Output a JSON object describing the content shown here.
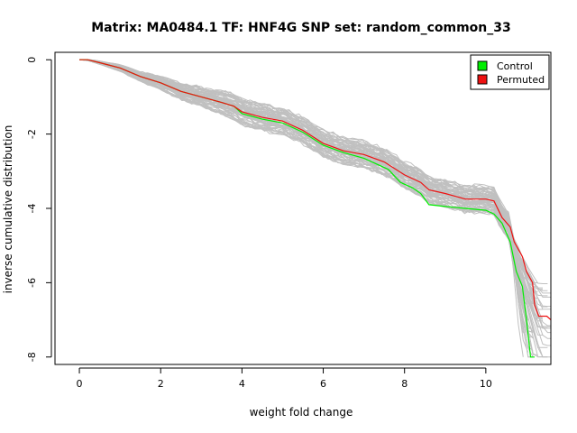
{
  "chart_data": {
    "type": "line",
    "title": "Matrix: MA0484.1 TF: HNF4G SNP set: random_common_33",
    "xlabel": "weight fold change",
    "ylabel": "inverse cumulative distribution",
    "xlim": [
      -0.6,
      11.6
    ],
    "ylim": [
      -8.2,
      0.2
    ],
    "xticks": [
      0,
      2,
      4,
      6,
      8,
      10
    ],
    "yticks": [
      0,
      -2,
      -4,
      -6,
      -8
    ],
    "grid": false,
    "legend": {
      "position": "top-right",
      "entries": [
        "Control",
        "Permuted"
      ]
    },
    "colors": {
      "control": "#00ee00",
      "permuted": "#ee1111",
      "background_series": "#c0c0c0"
    },
    "series": [
      {
        "name": "Control",
        "color": "#00ee00",
        "points": [
          [
            0.0,
            0.0
          ],
          [
            0.2,
            0.0
          ],
          [
            0.5,
            -0.08
          ],
          [
            1.0,
            -0.22
          ],
          [
            1.5,
            -0.45
          ],
          [
            2.0,
            -0.62
          ],
          [
            2.5,
            -0.85
          ],
          [
            3.0,
            -1.0
          ],
          [
            3.5,
            -1.15
          ],
          [
            3.8,
            -1.25
          ],
          [
            4.0,
            -1.45
          ],
          [
            4.5,
            -1.6
          ],
          [
            5.0,
            -1.7
          ],
          [
            5.5,
            -1.95
          ],
          [
            6.0,
            -2.3
          ],
          [
            6.5,
            -2.5
          ],
          [
            7.0,
            -2.65
          ],
          [
            7.3,
            -2.8
          ],
          [
            7.6,
            -2.95
          ],
          [
            7.9,
            -3.3
          ],
          [
            8.2,
            -3.45
          ],
          [
            8.4,
            -3.6
          ],
          [
            8.6,
            -3.9
          ],
          [
            9.0,
            -3.95
          ],
          [
            9.5,
            -4.0
          ],
          [
            10.0,
            -4.05
          ],
          [
            10.2,
            -4.15
          ],
          [
            10.4,
            -4.4
          ],
          [
            10.6,
            -4.9
          ],
          [
            10.75,
            -5.7
          ],
          [
            10.9,
            -6.1
          ],
          [
            11.0,
            -7.0
          ],
          [
            11.1,
            -8.0
          ],
          [
            11.2,
            -8.0
          ]
        ]
      },
      {
        "name": "Permuted",
        "color": "#ee1111",
        "points": [
          [
            0.0,
            0.0
          ],
          [
            0.2,
            0.0
          ],
          [
            0.5,
            -0.08
          ],
          [
            1.0,
            -0.22
          ],
          [
            1.5,
            -0.45
          ],
          [
            2.0,
            -0.62
          ],
          [
            2.5,
            -0.85
          ],
          [
            3.0,
            -1.0
          ],
          [
            3.5,
            -1.15
          ],
          [
            3.8,
            -1.25
          ],
          [
            4.0,
            -1.4
          ],
          [
            4.5,
            -1.55
          ],
          [
            5.0,
            -1.65
          ],
          [
            5.5,
            -1.9
          ],
          [
            6.0,
            -2.25
          ],
          [
            6.5,
            -2.45
          ],
          [
            7.0,
            -2.55
          ],
          [
            7.5,
            -2.75
          ],
          [
            8.0,
            -3.1
          ],
          [
            8.4,
            -3.3
          ],
          [
            8.6,
            -3.5
          ],
          [
            9.0,
            -3.6
          ],
          [
            9.5,
            -3.75
          ],
          [
            10.0,
            -3.75
          ],
          [
            10.2,
            -3.8
          ],
          [
            10.4,
            -4.25
          ],
          [
            10.6,
            -4.5
          ],
          [
            10.7,
            -4.9
          ],
          [
            10.8,
            -5.1
          ],
          [
            10.9,
            -5.3
          ],
          [
            11.0,
            -5.7
          ],
          [
            11.15,
            -6.0
          ],
          [
            11.2,
            -6.6
          ],
          [
            11.3,
            -6.9
          ],
          [
            11.5,
            -6.9
          ],
          [
            11.6,
            -7.0
          ]
        ]
      }
    ]
  }
}
